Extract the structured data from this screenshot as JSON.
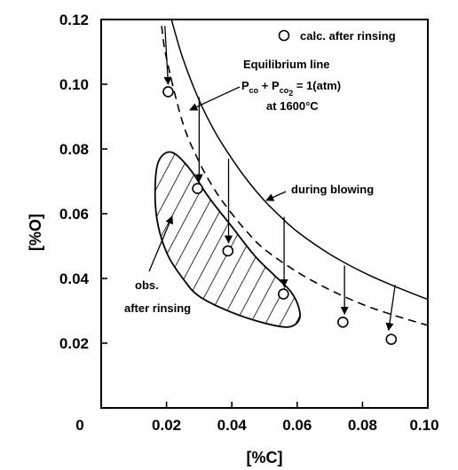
{
  "chart_data": {
    "type": "scatter",
    "xlabel": "[%C]",
    "ylabel": "[%O]",
    "xlim": [
      0,
      0.1
    ],
    "ylim": [
      0,
      0.12
    ],
    "x_ticks": [
      {
        "value": 0,
        "label": "0"
      },
      {
        "value": 0.02,
        "label": "0.02"
      },
      {
        "value": 0.04,
        "label": "0.04"
      },
      {
        "value": 0.06,
        "label": "0.06"
      },
      {
        "value": 0.08,
        "label": "0.08"
      },
      {
        "value": 0.1,
        "label": "0.10"
      }
    ],
    "y_ticks": [
      {
        "value": 0.02,
        "label": "0.02"
      },
      {
        "value": 0.04,
        "label": "0.04"
      },
      {
        "value": 0.06,
        "label": "0.06"
      },
      {
        "value": 0.08,
        "label": "0.08"
      },
      {
        "value": 0.1,
        "label": "0.10"
      },
      {
        "value": 0.12,
        "label": "0.12"
      }
    ],
    "grid": false,
    "legend": {
      "position": "top-right",
      "marker": "open-circle",
      "label": "calc. after rinsing"
    },
    "points": {
      "name": "calc. after rinsing",
      "x": [
        0.0205,
        0.0295,
        0.0388,
        0.0558,
        0.074,
        0.0888
      ],
      "y": [
        0.0977,
        0.0678,
        0.0485,
        0.0352,
        0.0265,
        0.0212
      ]
    },
    "curves": [
      {
        "name": "during blowing",
        "style": "solid",
        "x": [
          0.0215,
          0.025,
          0.03,
          0.035,
          0.04,
          0.045,
          0.05,
          0.055,
          0.06,
          0.07,
          0.08,
          0.09,
          0.1
        ],
        "y": [
          0.12,
          0.108,
          0.095,
          0.085,
          0.077,
          0.07,
          0.064,
          0.059,
          0.0545,
          0.0475,
          0.042,
          0.0375,
          0.0335
        ]
      },
      {
        "name": "Equilibrium line",
        "style": "dashed",
        "x": [
          0.0185,
          0.02,
          0.025,
          0.03,
          0.035,
          0.04,
          0.045,
          0.05,
          0.06,
          0.07,
          0.08,
          0.09,
          0.1
        ],
        "y": [
          0.118,
          0.108,
          0.088,
          0.076,
          0.067,
          0.06,
          0.054,
          0.049,
          0.042,
          0.0365,
          0.032,
          0.0285,
          0.0255
        ]
      }
    ],
    "arrows": [
      {
        "from": [
          0.0195,
          0.118
        ],
        "to": [
          0.0205,
          0.1
        ]
      },
      {
        "from": [
          0.03,
          0.096
        ],
        "to": [
          0.03,
          0.07
        ]
      },
      {
        "from": [
          0.039,
          0.077
        ],
        "to": [
          0.039,
          0.051
        ]
      },
      {
        "from": [
          0.056,
          0.059
        ],
        "to": [
          0.056,
          0.0375
        ]
      },
      {
        "from": [
          0.0745,
          0.044
        ],
        "to": [
          0.0745,
          0.029
        ]
      },
      {
        "from": [
          0.09,
          0.038
        ],
        "to": [
          0.088,
          0.024
        ]
      }
    ],
    "region": {
      "name": "obs. after rinsing",
      "fill": "hatched",
      "x": [
        0.0175,
        0.0165,
        0.0175,
        0.0205,
        0.025,
        0.03,
        0.04,
        0.05,
        0.057,
        0.0605,
        0.0605,
        0.058,
        0.053,
        0.047,
        0.04,
        0.033,
        0.027,
        0.0215
      ],
      "y": [
        0.076,
        0.066,
        0.056,
        0.047,
        0.04,
        0.0345,
        0.0295,
        0.0262,
        0.025,
        0.027,
        0.031,
        0.036,
        0.041,
        0.047,
        0.056,
        0.065,
        0.074,
        0.079
      ]
    },
    "annotations": {
      "legend_label": "calc. after rinsing",
      "equilibrium_title": "Equilibrium line",
      "equilibrium_formula": {
        "p1": "P",
        "s1": "co",
        "plus": " + ",
        "p2": "P",
        "s2": "co",
        "s2_sub": "2",
        "rhs": " = 1(atm)"
      },
      "equilibrium_temp": "at 1600°C",
      "during_blowing": "during blowing",
      "obs_line1": "obs.",
      "obs_line2": "after rinsing"
    },
    "colors": {
      "ink": "#000000",
      "background": "#ffffff"
    }
  }
}
